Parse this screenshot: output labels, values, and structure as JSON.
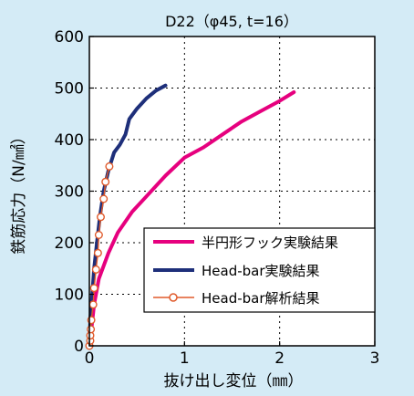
{
  "chart_data": {
    "type": "line",
    "title": "D22（φ45, t=16）",
    "xlabel": "抜け出し変位（㎜）",
    "ylabel": "鉄筋応力（N/㎟）",
    "xlim": [
      0,
      3
    ],
    "ylim": [
      0,
      600
    ],
    "xticks": [
      0,
      1,
      2,
      3
    ],
    "yticks": [
      0,
      100,
      200,
      300,
      400,
      500,
      600
    ],
    "grid": "dotted",
    "legend_position": "lower-right",
    "series": [
      {
        "name": "半円形フック実験結果",
        "color": "#e6007e",
        "style": "line",
        "points": [
          [
            0,
            0
          ],
          [
            0.02,
            30
          ],
          [
            0.05,
            80
          ],
          [
            0.1,
            130
          ],
          [
            0.2,
            180
          ],
          [
            0.3,
            220
          ],
          [
            0.45,
            260
          ],
          [
            0.6,
            290
          ],
          [
            0.8,
            330
          ],
          [
            1.0,
            365
          ],
          [
            1.2,
            385
          ],
          [
            1.4,
            410
          ],
          [
            1.6,
            435
          ],
          [
            1.8,
            455
          ],
          [
            2.0,
            475
          ],
          [
            2.15,
            492
          ]
        ]
      },
      {
        "name": "Head-bar実験結果",
        "color": "#1e2f7a",
        "style": "line",
        "points": [
          [
            0,
            0
          ],
          [
            0.01,
            50
          ],
          [
            0.03,
            100
          ],
          [
            0.05,
            150
          ],
          [
            0.08,
            200
          ],
          [
            0.11,
            250
          ],
          [
            0.15,
            300
          ],
          [
            0.2,
            340
          ],
          [
            0.26,
            375
          ],
          [
            0.32,
            390
          ],
          [
            0.38,
            410
          ],
          [
            0.42,
            440
          ],
          [
            0.5,
            460
          ],
          [
            0.6,
            480
          ],
          [
            0.7,
            495
          ],
          [
            0.8,
            505
          ]
        ]
      },
      {
        "name": "Head-bar解析結果",
        "color": "#e05a2b",
        "style": "line-markers",
        "points": [
          [
            0.0,
            0
          ],
          [
            0.01,
            10
          ],
          [
            0.01,
            20
          ],
          [
            0.015,
            32
          ],
          [
            0.02,
            50
          ],
          [
            0.04,
            80
          ],
          [
            0.05,
            112
          ],
          [
            0.07,
            148
          ],
          [
            0.09,
            180
          ],
          [
            0.1,
            215
          ],
          [
            0.12,
            250
          ],
          [
            0.15,
            285
          ],
          [
            0.17,
            318
          ],
          [
            0.21,
            348
          ]
        ]
      }
    ]
  }
}
